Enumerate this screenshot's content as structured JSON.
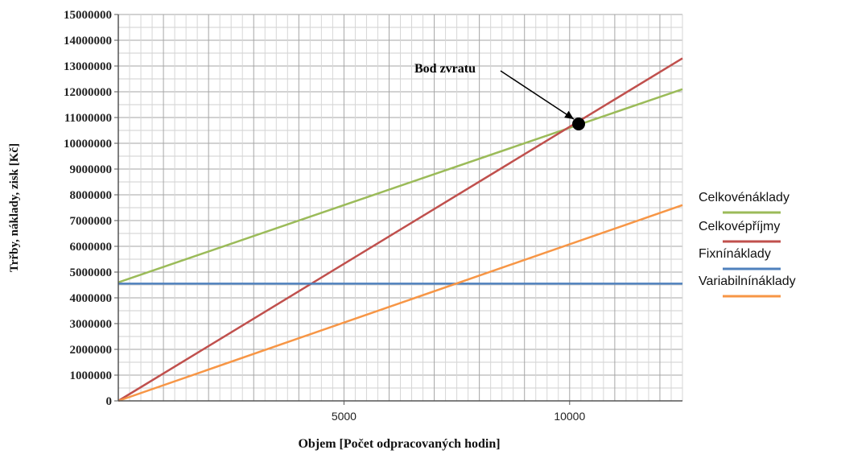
{
  "chart_data": {
    "type": "line",
    "title": "",
    "xlabel": "Objem [Počet odpracovaných hodin]",
    "ylabel": "Trřby, náklady, zisk [Kč]",
    "xlim": [
      0,
      12500
    ],
    "ylim": [
      0,
      15000000
    ],
    "x_ticks": [
      {
        "value": 5000,
        "label": "5000"
      },
      {
        "value": 10000,
        "label": "10000"
      }
    ],
    "y_ticks": [
      {
        "value": 0,
        "label": "0"
      },
      {
        "value": 1000000,
        "label": "1000000"
      },
      {
        "value": 2000000,
        "label": "2000000"
      },
      {
        "value": 3000000,
        "label": "3000000"
      },
      {
        "value": 4000000,
        "label": "4000000"
      },
      {
        "value": 5000000,
        "label": "5000000"
      },
      {
        "value": 6000000,
        "label": "6000000"
      },
      {
        "value": 7000000,
        "label": "7000000"
      },
      {
        "value": 8000000,
        "label": "8000000"
      },
      {
        "value": 9000000,
        "label": "9000000"
      },
      {
        "value": 10000000,
        "label": "10000000"
      },
      {
        "value": 11000000,
        "label": "11000000"
      },
      {
        "value": 12000000,
        "label": "12000000"
      },
      {
        "value": 13000000,
        "label": "13000000"
      },
      {
        "value": 14000000,
        "label": "14000000"
      },
      {
        "value": 15000000,
        "label": "15000000"
      }
    ],
    "grid": true,
    "legend_position": "right",
    "series": [
      {
        "name": "Celkovénáklady",
        "color": "#9bbb59",
        "x": [
          0,
          12500
        ],
        "y": [
          4600000,
          12100000
        ]
      },
      {
        "name": "Celkovépříjmy",
        "color": "#c0504d",
        "x": [
          0,
          12500
        ],
        "y": [
          0,
          13300000
        ]
      },
      {
        "name": "Fixnínáklady",
        "color": "#4f81bd",
        "x": [
          0,
          12500
        ],
        "y": [
          4550000,
          4550000
        ]
      },
      {
        "name": "Variabilnínáklady",
        "color": "#f79646",
        "x": [
          0,
          12500
        ],
        "y": [
          0,
          7600000
        ]
      }
    ],
    "annotation": {
      "text": "Bod zvratu",
      "point": {
        "x": 10200,
        "y": 10750000
      }
    }
  }
}
